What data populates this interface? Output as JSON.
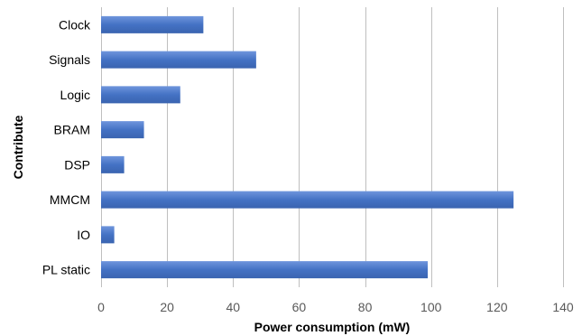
{
  "chart_data": {
    "type": "bar",
    "orientation": "horizontal",
    "categories": [
      "Clock",
      "Signals",
      "Logic",
      "BRAM",
      "DSP",
      "MMCM",
      "IO",
      "PL static"
    ],
    "values": [
      31,
      47,
      24,
      13,
      7,
      125,
      4,
      99
    ],
    "xlabel": "Power consumption (mW)",
    "ylabel": "Contribute",
    "xlim": [
      0,
      140
    ],
    "xticks": [
      0,
      20,
      40,
      60,
      80,
      100,
      120,
      140
    ],
    "grid": true,
    "bar_color": "#4472c4",
    "bar_color_light": "#6f95dc"
  }
}
